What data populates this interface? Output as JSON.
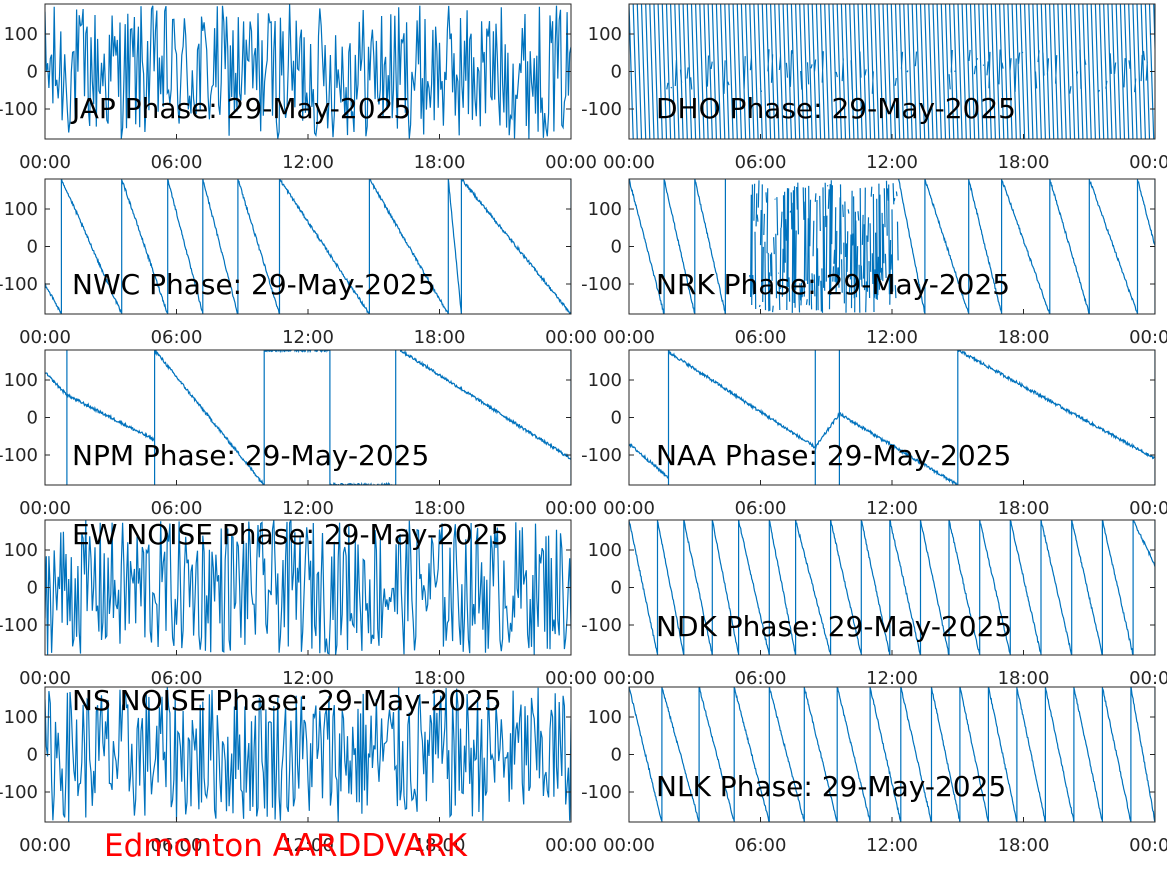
{
  "figure": {
    "station_label": "Edmonton AARDDVARK",
    "colors": {
      "signal": "#0072BD",
      "axis": "#262626",
      "station_label": "#ff0000"
    }
  },
  "chart_data": [
    {
      "type": "line",
      "title": "JAP Phase: 29-May-2025",
      "pattern": "noise",
      "xlim": [
        0,
        24
      ],
      "ylim": [
        -180,
        180
      ],
      "xticks": [
        "00:00",
        "06:00",
        "12:00",
        "18:00",
        "00:00"
      ],
      "yticks": [
        "100",
        "0",
        "-100"
      ],
      "grid": false
    },
    {
      "type": "line",
      "title": "DHO Phase: 29-May-2025",
      "pattern": "dense-wrap",
      "xlim": [
        0,
        24
      ],
      "ylim": [
        -180,
        180
      ],
      "xticks": [
        "00:00",
        "06:00",
        "12:00",
        "18:00",
        "00:00"
      ],
      "yticks": [
        "100",
        "0",
        "-100"
      ],
      "grid": false
    },
    {
      "type": "line",
      "title": "NWC Phase: 29-May-2025",
      "pattern": "wrap",
      "xlim": [
        0,
        24
      ],
      "ylim": [
        -180,
        180
      ],
      "xticks": [
        "00:00",
        "06:00",
        "12:00",
        "18:00",
        "00:00"
      ],
      "yticks": [
        "100",
        "0",
        "-100"
      ],
      "grid": false,
      "segments": [
        [
          0,
          -100,
          0.75,
          -180
        ],
        [
          0.75,
          180,
          3.5,
          -180
        ],
        [
          3.5,
          180,
          5.6,
          -180
        ],
        [
          5.6,
          180,
          7.2,
          -180
        ],
        [
          7.2,
          180,
          8.8,
          -180
        ],
        [
          8.8,
          180,
          10.7,
          -180
        ],
        [
          10.7,
          180,
          14.8,
          -180
        ],
        [
          14.8,
          180,
          18.4,
          -180
        ],
        [
          18.4,
          180,
          19,
          -180
        ],
        [
          19,
          180,
          24,
          -180
        ]
      ]
    },
    {
      "type": "line",
      "title": "NRK Phase: 29-May-2025",
      "pattern": "wrap",
      "xlim": [
        0,
        24
      ],
      "ylim": [
        -180,
        180
      ],
      "xticks": [
        "00:00",
        "06:00",
        "12:00",
        "18:00",
        "00:00"
      ],
      "yticks": [
        "100",
        "0",
        "-100"
      ],
      "grid": false,
      "noise_span": [
        5.5,
        12.3
      ],
      "segments": [
        [
          0,
          180,
          1.6,
          -180
        ],
        [
          1.6,
          180,
          3.0,
          -180
        ],
        [
          3.0,
          180,
          4.4,
          -180
        ],
        [
          12.3,
          180,
          13.5,
          -180
        ],
        [
          13.5,
          180,
          15.5,
          -180
        ],
        [
          15.5,
          180,
          17.0,
          -180
        ],
        [
          17.0,
          180,
          19.2,
          -180
        ],
        [
          19.2,
          180,
          21.0,
          -180
        ],
        [
          21.0,
          180,
          23.2,
          -180
        ],
        [
          23.2,
          180,
          24,
          0
        ]
      ]
    },
    {
      "type": "line",
      "title": "NPM Phase: 29-May-2025",
      "pattern": "mixed",
      "xlim": [
        0,
        24
      ],
      "ylim": [
        -180,
        180
      ],
      "xticks": [
        "00:00",
        "06:00",
        "12:00",
        "18:00",
        "00:00"
      ],
      "yticks": [
        "100",
        "0",
        "-100"
      ],
      "grid": false,
      "segments": [
        [
          0,
          120,
          1,
          60
        ],
        [
          1,
          60,
          5,
          -60
        ],
        [
          5,
          180,
          10,
          -180
        ],
        [
          10,
          180,
          13,
          180
        ],
        [
          13,
          -180,
          16,
          -180
        ],
        [
          16.2,
          180,
          24,
          -110
        ]
      ]
    },
    {
      "type": "line",
      "title": "NAA Phase: 29-May-2025",
      "pattern": "mixed",
      "xlim": [
        0,
        24
      ],
      "ylim": [
        -180,
        180
      ],
      "xticks": [
        "00:00",
        "06:00",
        "12:00",
        "18:00",
        "00:00"
      ],
      "yticks": [
        "100",
        "0",
        "-100"
      ],
      "grid": false,
      "segments": [
        [
          0,
          -70,
          1.8,
          -160
        ],
        [
          1.8,
          175,
          8.5,
          -80
        ],
        [
          8.5,
          -80,
          9.6,
          10
        ],
        [
          9.6,
          10,
          15.0,
          -180
        ],
        [
          15.0,
          180,
          24,
          -110
        ]
      ]
    },
    {
      "type": "line",
      "title": "EW NOISE Phase: 29-May-2025",
      "pattern": "noise",
      "xlim": [
        0,
        24
      ],
      "ylim": [
        -180,
        180
      ],
      "xticks": [
        "00:00",
        "06:00",
        "12:00",
        "18:00",
        "00:00"
      ],
      "yticks": [
        "100",
        "0",
        "-100"
      ],
      "grid": false
    },
    {
      "type": "line",
      "title": "NDK Phase: 29-May-2025",
      "pattern": "wrap",
      "xlim": [
        0,
        24
      ],
      "ylim": [
        -180,
        180
      ],
      "xticks": [
        "00:00",
        "06:00",
        "12:00",
        "18:00",
        "00:00"
      ],
      "yticks": [
        "100",
        "0",
        "-100"
      ],
      "grid": false,
      "segments": [
        [
          0,
          180,
          1.3,
          -180
        ],
        [
          1.3,
          180,
          2.5,
          -180
        ],
        [
          2.5,
          180,
          3.8,
          -180
        ],
        [
          3.8,
          180,
          5.0,
          -180
        ],
        [
          5.0,
          180,
          6.4,
          -180
        ],
        [
          6.4,
          180,
          7.6,
          -180
        ],
        [
          7.6,
          180,
          9.2,
          -180
        ],
        [
          9.2,
          180,
          10.6,
          -180
        ],
        [
          10.6,
          180,
          11.9,
          -180
        ],
        [
          11.9,
          180,
          13.3,
          -180
        ],
        [
          13.3,
          180,
          14.6,
          -180
        ],
        [
          14.6,
          180,
          16.0,
          -180
        ],
        [
          16.0,
          180,
          17.4,
          -180
        ],
        [
          17.4,
          180,
          18.8,
          -180
        ],
        [
          18.8,
          180,
          20.2,
          -180
        ],
        [
          20.2,
          180,
          21.6,
          -180
        ],
        [
          21.6,
          180,
          23.0,
          -180
        ],
        [
          23.0,
          180,
          24,
          60
        ]
      ]
    },
    {
      "type": "line",
      "title": "NS NOISE Phase: 29-May-2025",
      "pattern": "noise",
      "xlim": [
        0,
        24
      ],
      "ylim": [
        -180,
        180
      ],
      "xticks": [
        "00:00",
        "06:00",
        "12:00",
        "18:00",
        "00:00"
      ],
      "yticks": [
        "100",
        "0",
        "-100"
      ],
      "grid": false
    },
    {
      "type": "line",
      "title": "NLK Phase: 29-May-2025",
      "pattern": "wrap",
      "xlim": [
        0,
        24
      ],
      "ylim": [
        -180,
        180
      ],
      "xticks": [
        "00:00",
        "06:00",
        "12:00",
        "18:00",
        "00:00"
      ],
      "yticks": [
        "100",
        "0",
        "-100"
      ],
      "grid": false,
      "segments": [
        [
          0,
          180,
          1.5,
          -180
        ],
        [
          1.5,
          180,
          3.2,
          -180
        ],
        [
          3.2,
          180,
          4.8,
          -180
        ],
        [
          4.8,
          180,
          6.4,
          -180
        ],
        [
          6.4,
          180,
          8.0,
          -180
        ],
        [
          8.0,
          180,
          9.5,
          -180
        ],
        [
          9.5,
          180,
          11.0,
          -180
        ],
        [
          11.0,
          180,
          12.4,
          -180
        ],
        [
          12.4,
          180,
          13.8,
          -180
        ],
        [
          13.8,
          180,
          15.1,
          -180
        ],
        [
          15.1,
          180,
          16.4,
          -180
        ],
        [
          16.4,
          180,
          17.7,
          -180
        ],
        [
          17.7,
          180,
          19.0,
          -180
        ],
        [
          19.0,
          180,
          20.3,
          -180
        ],
        [
          20.3,
          180,
          21.6,
          -180
        ],
        [
          21.6,
          180,
          22.9,
          -180
        ],
        [
          22.9,
          180,
          24,
          -180
        ]
      ]
    }
  ]
}
